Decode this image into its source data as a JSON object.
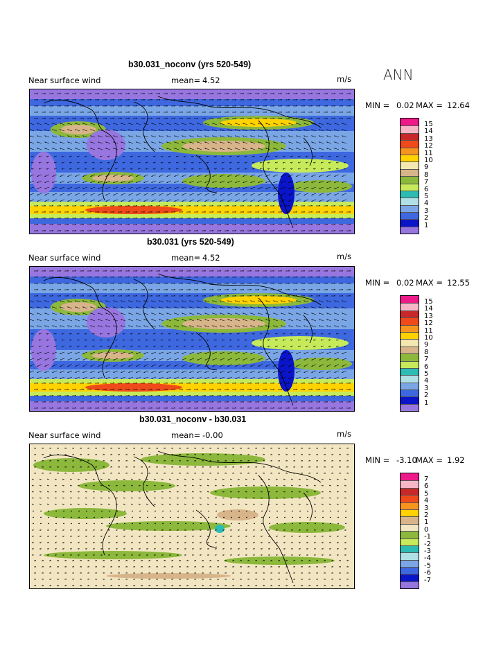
{
  "season": "ANN",
  "panels": [
    {
      "title": "b30.031_noconv (yrs 520-549)",
      "variable": "Near surface wind",
      "mean_label": "mean=",
      "mean_value": "4.52",
      "units": "m/s",
      "min_label": "MIN =",
      "min_value": "0.02",
      "max_label": "MAX =",
      "max_value": "12.64",
      "levels": [
        "15",
        "14",
        "13",
        "12",
        "11",
        "10",
        "9",
        "8",
        "7",
        "6",
        "5",
        "4",
        "3",
        "2",
        "1"
      ],
      "colors": [
        "#ee1a8a",
        "#f7b6c6",
        "#c8282a",
        "#f04a1a",
        "#f7941e",
        "#ffd200",
        "#f2e8b0",
        "#d8b48a",
        "#8cb83c",
        "#c6ea5a",
        "#2cbcb4",
        "#aee0e6",
        "#7aa6e6",
        "#3e68e0",
        "#0a14c8",
        "#9876e0"
      ]
    },
    {
      "title": "b30.031 (yrs 520-549)",
      "variable": "Near surface wind",
      "mean_label": "mean=",
      "mean_value": "4.52",
      "units": "m/s",
      "min_label": "MIN =",
      "min_value": "0.02",
      "max_label": "MAX =",
      "max_value": "12.55",
      "levels": [
        "15",
        "14",
        "13",
        "12",
        "11",
        "10",
        "9",
        "8",
        "7",
        "6",
        "5",
        "4",
        "3",
        "2",
        "1"
      ],
      "colors": [
        "#ee1a8a",
        "#f7b6c6",
        "#c8282a",
        "#f04a1a",
        "#f7941e",
        "#ffd200",
        "#f2e8b0",
        "#d8b48a",
        "#8cb83c",
        "#c6ea5a",
        "#2cbcb4",
        "#aee0e6",
        "#7aa6e6",
        "#3e68e0",
        "#0a14c8",
        "#9876e0"
      ]
    },
    {
      "title": "b30.031_noconv - b30.031",
      "variable": "Near surface wind",
      "mean_label": "mean=",
      "mean_value": "-0.00",
      "units": "m/s",
      "min_label": "MIN =",
      "min_value": "-3.10",
      "max_label": "MAX =",
      "max_value": "1.92",
      "levels": [
        "7",
        "6",
        "5",
        "4",
        "3",
        "2",
        "1",
        "0",
        "-1",
        "-2",
        "-3",
        "-4",
        "-5",
        "-6",
        "-7"
      ],
      "colors": [
        "#ee1a8a",
        "#f7b6c6",
        "#c8282a",
        "#f04a1a",
        "#f7941e",
        "#ffd200",
        "#d8b48a",
        "#f2e6c2",
        "#8cb83c",
        "#c6ea5a",
        "#2cbcb4",
        "#aee0e6",
        "#7aa6e6",
        "#3e68e0",
        "#0a14c8",
        "#9876e0"
      ]
    }
  ]
}
